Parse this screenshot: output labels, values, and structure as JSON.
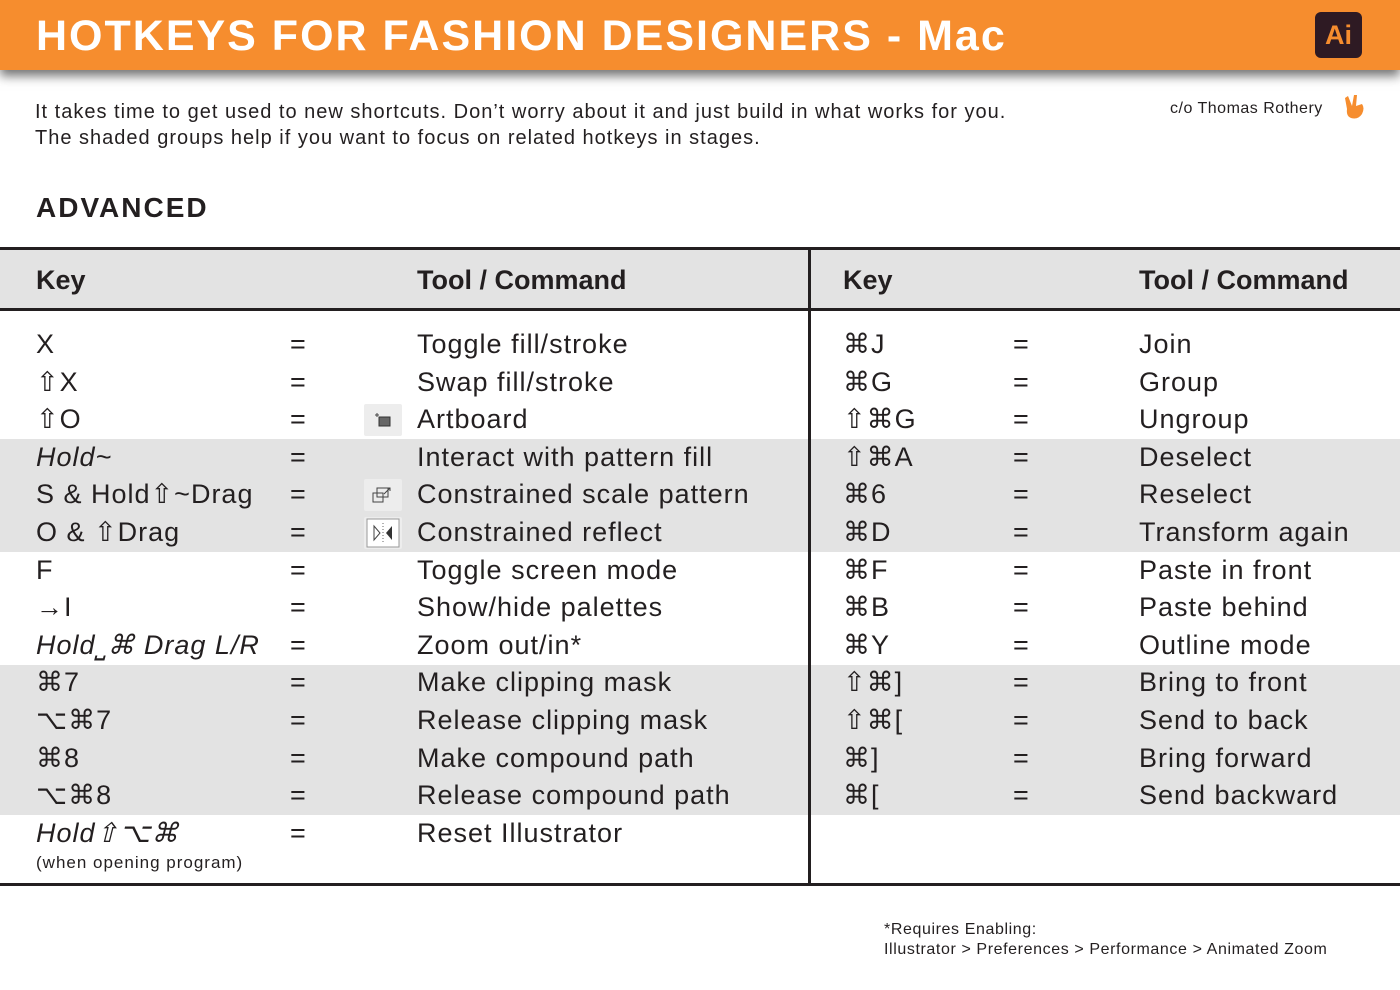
{
  "title": "HOTKEYS FOR FASHION DESIGNERS - Mac",
  "app_badge": "Ai",
  "intro": [
    "It takes time to get used to new shortcuts. Don’t worry about it and just build in what works for you.",
    "The shaded groups help if you want to focus on related hotkeys in stages."
  ],
  "credit": "c/o Thomas Rothery",
  "section": "ADVANCED",
  "headers": {
    "key": "Key",
    "command": "Tool / Command"
  },
  "equals": "=",
  "left": [
    {
      "key": "X",
      "cmd": "Toggle fill/stroke"
    },
    {
      "key": "⇧X",
      "cmd": "Swap fill/stroke"
    },
    {
      "key": "⇧O",
      "cmd": "Artboard",
      "icon": "artboard-icon"
    },
    {
      "key": "Hold~",
      "cmd": "Interact with pattern fill",
      "italic": true,
      "shaded": true
    },
    {
      "key": "S & Hold⇧~Drag",
      "cmd": "Constrained scale pattern",
      "icon": "scale-icon",
      "shaded": true
    },
    {
      "key": "O & ⇧Drag",
      "cmd": "Constrained reflect",
      "icon": "reflect-icon",
      "shaded": true
    },
    {
      "key": "F",
      "cmd": "Toggle screen mode"
    },
    {
      "key": "→I",
      "cmd": "Show/hide palettes"
    },
    {
      "key": "Hold⎵⌘ Drag L/R",
      "cmd": "Zoom out/in*",
      "italic": true
    },
    {
      "key": "⌘7",
      "cmd": "Make clipping mask",
      "shaded": true
    },
    {
      "key": "⌥⌘7",
      "cmd": "Release clipping mask",
      "shaded": true
    },
    {
      "key": "⌘8",
      "cmd": "Make compound path",
      "shaded": true
    },
    {
      "key": "⌥⌘8",
      "cmd": "Release compound path",
      "shaded": true
    },
    {
      "key": "Hold⇧⌥⌘",
      "cmd": "Reset Illustrator",
      "italic": true
    }
  ],
  "left_note": "(when opening program)",
  "right": [
    {
      "key": "⌘J",
      "cmd": "Join"
    },
    {
      "key": "⌘G",
      "cmd": "Group"
    },
    {
      "key": "⇧⌘G",
      "cmd": "Ungroup"
    },
    {
      "key": "⇧⌘A",
      "cmd": "Deselect",
      "shaded": true
    },
    {
      "key": "⌘6",
      "cmd": "Reselect",
      "shaded": true
    },
    {
      "key": "⌘D",
      "cmd": "Transform again",
      "shaded": true
    },
    {
      "key": "⌘F",
      "cmd": "Paste in front"
    },
    {
      "key": "⌘B",
      "cmd": "Paste behind"
    },
    {
      "key": "⌘Y",
      "cmd": "Outline mode"
    },
    {
      "key": "⇧⌘]",
      "cmd": "Bring to front",
      "shaded": true
    },
    {
      "key": "⇧⌘[",
      "cmd": "Send to back",
      "shaded": true
    },
    {
      "key": "⌘]",
      "cmd": "Bring forward",
      "shaded": true
    },
    {
      "key": "⌘[",
      "cmd": "Send backward",
      "shaded": true
    }
  ],
  "footnote": [
    "*Requires Enabling:",
    "Illustrator > Preferences > Performance > Animated Zoom"
  ],
  "colors": {
    "accent": "#f68d2e",
    "badge_bg": "#2e1a23",
    "shade": "#e3e3e3"
  }
}
